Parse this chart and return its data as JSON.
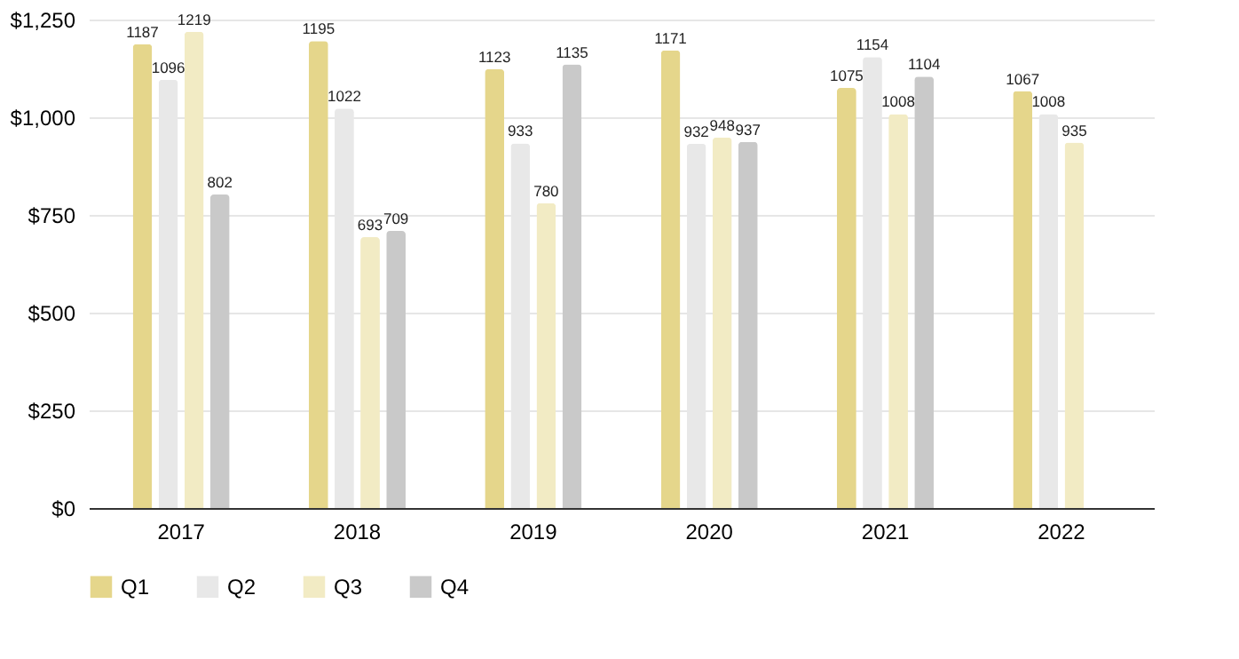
{
  "chart_data": {
    "type": "bar",
    "categories": [
      "2017",
      "2018",
      "2019",
      "2020",
      "2021",
      "2022"
    ],
    "series": [
      {
        "name": "Q1",
        "color": "#e5d68b",
        "values": [
          1187,
          1195,
          1123,
          1171,
          1075,
          1067
        ]
      },
      {
        "name": "Q2",
        "color": "#e8e8e8",
        "values": [
          1096,
          1022,
          933,
          932,
          1154,
          1008
        ]
      },
      {
        "name": "Q3",
        "color": "#f2ebc4",
        "values": [
          1219,
          693,
          780,
          948,
          1008,
          935
        ]
      },
      {
        "name": "Q4",
        "color": "#c9c9c9",
        "values": [
          802,
          709,
          1135,
          937,
          1104,
          null
        ]
      }
    ],
    "ylim": [
      0,
      1250
    ],
    "yticks": [
      {
        "value": 0,
        "label": "$0"
      },
      {
        "value": 250,
        "label": "$250"
      },
      {
        "value": 500,
        "label": "$500"
      },
      {
        "value": 750,
        "label": "$750"
      },
      {
        "value": 1000,
        "label": "$1,000"
      },
      {
        "value": 1250,
        "label": "$1,250"
      }
    ],
    "grid": "y",
    "legend": "bottom",
    "data_labels": true
  }
}
